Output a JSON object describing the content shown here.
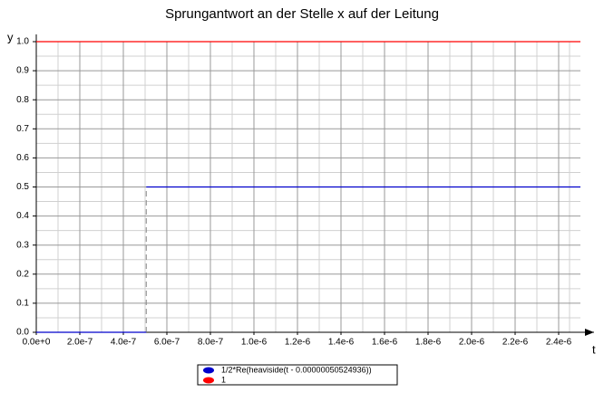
{
  "chart_data": {
    "type": "line",
    "title": "Sprungantwort an der Stelle x auf der Leitung",
    "xlabel": "t",
    "ylabel": "y",
    "xlim": [
      0,
      2.5e-06
    ],
    "ylim": [
      0,
      1
    ],
    "xticks": [
      {
        "value": 0,
        "label": "0.0e+0"
      },
      {
        "value": 2e-07,
        "label": "2.0e-7"
      },
      {
        "value": 4e-07,
        "label": "4.0e-7"
      },
      {
        "value": 6e-07,
        "label": "6.0e-7"
      },
      {
        "value": 8e-07,
        "label": "8.0e-7"
      },
      {
        "value": 1e-06,
        "label": "1.0e-6"
      },
      {
        "value": 1.2e-06,
        "label": "1.2e-6"
      },
      {
        "value": 1.4e-06,
        "label": "1.4e-6"
      },
      {
        "value": 1.6e-06,
        "label": "1.6e-6"
      },
      {
        "value": 1.8e-06,
        "label": "1.8e-6"
      },
      {
        "value": 2e-06,
        "label": "2.0e-6"
      },
      {
        "value": 2.2e-06,
        "label": "2.2e-6"
      },
      {
        "value": 2.4e-06,
        "label": "2.4e-6"
      }
    ],
    "yticks": [
      {
        "value": 0,
        "label": "0.0"
      },
      0.1,
      0.2,
      0.3,
      0.4,
      0.5,
      0.6,
      0.7,
      0.8,
      0.9,
      {
        "value": 1,
        "label": "1.0"
      }
    ],
    "grid": true,
    "minor_grid": true,
    "legend": "bottom",
    "series": [
      {
        "name": "1/2*Re(heaviside(t - 0.00000050524936))",
        "color": "#0000cc",
        "x": [
          0,
          5.0524936e-07,
          5.0524936e-07,
          5.0524936e-07,
          2.5e-06
        ],
        "values": [
          0,
          0,
          null,
          0.5,
          0.5
        ]
      },
      {
        "name": "1",
        "color": "#ff0000",
        "x": [
          0,
          2.5e-06
        ],
        "values": [
          1,
          1
        ]
      }
    ]
  }
}
